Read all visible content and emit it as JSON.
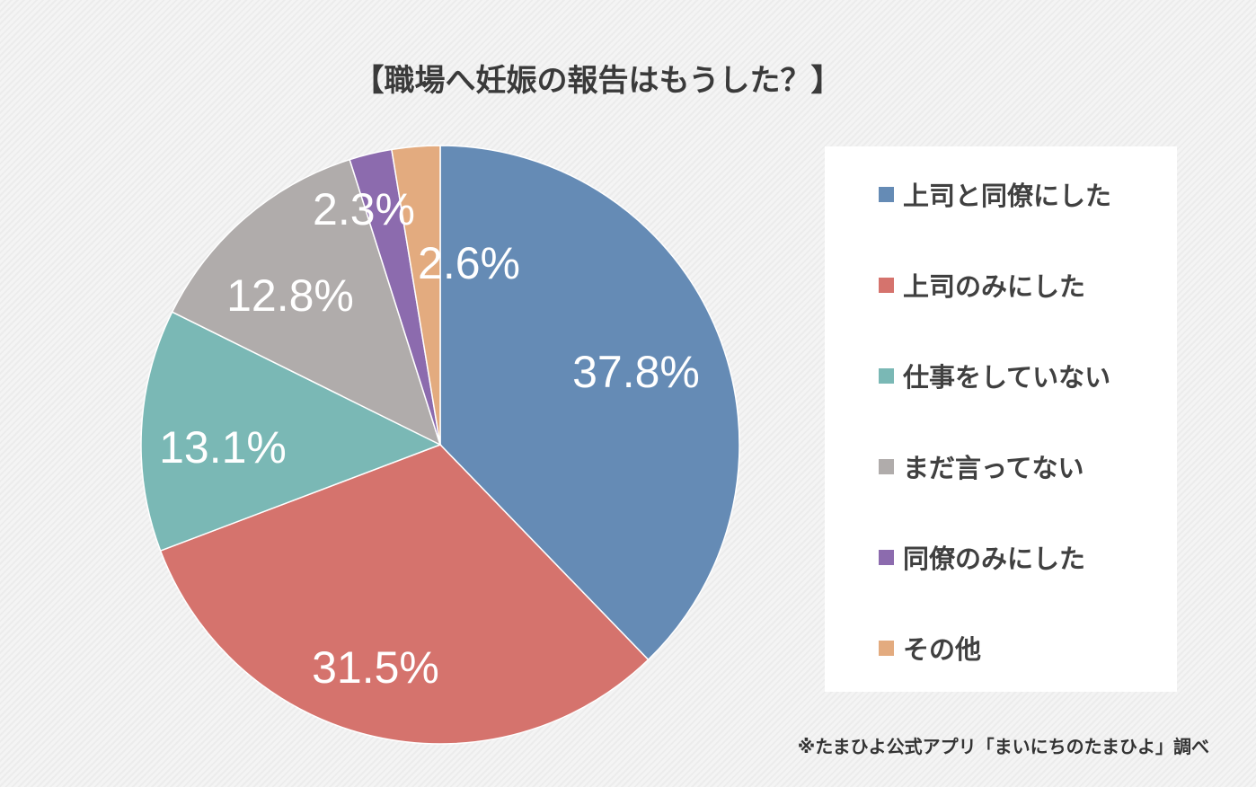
{
  "chart_data": {
    "type": "pie",
    "title": "【職場へ妊娠の報告はもうした？】",
    "start": "top",
    "direction": "clockwise",
    "slices": [
      {
        "label": "上司と同僚にした",
        "value": 37.8,
        "display": "37.8%",
        "color": "#658BB5"
      },
      {
        "label": "上司のみにした",
        "value": 31.5,
        "display": "31.5%",
        "color": "#D5736D"
      },
      {
        "label": "仕事をしていない",
        "value": 13.1,
        "display": "13.1%",
        "color": "#7AB8B5"
      },
      {
        "label": "まだ言ってない",
        "value": 12.8,
        "display": "12.8%",
        "color": "#B0ACAB"
      },
      {
        "label": "同僚のみにした",
        "value": 2.3,
        "display": "2.3%",
        "color": "#8C6BAE"
      },
      {
        "label": "その他",
        "value": 2.6,
        "display": "2.6%",
        "color": "#E3AB7F"
      }
    ],
    "legend_position": "right"
  },
  "source": "※たまひよ公式アプリ「まいにちのたまひよ」調べ"
}
